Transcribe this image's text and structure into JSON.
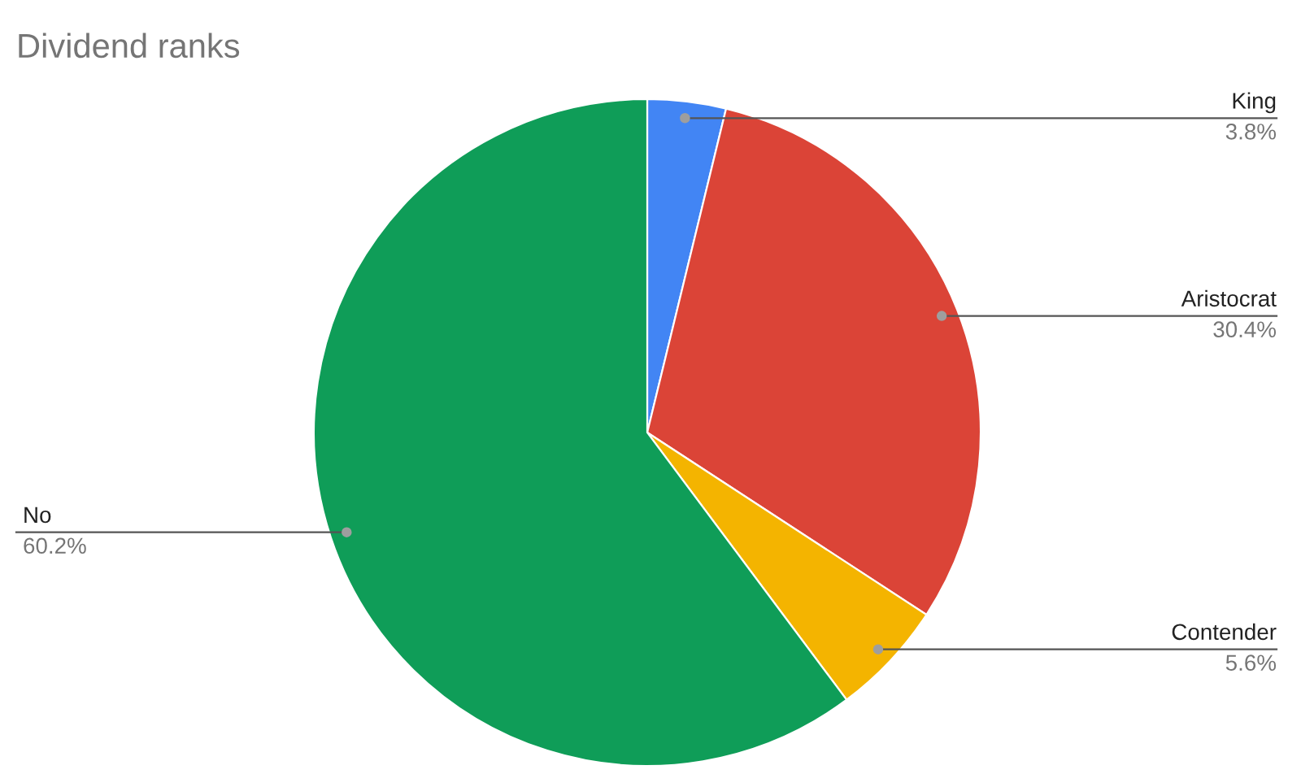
{
  "chart_data": {
    "type": "pie",
    "title": "Dividend ranks",
    "categories": [
      "King",
      "Aristocrat",
      "Contender",
      "No"
    ],
    "values": [
      3.8,
      30.4,
      5.6,
      60.2
    ],
    "colors": [
      "#4285f4",
      "#db4437",
      "#f4b400",
      "#0f9d58"
    ],
    "value_labels": [
      "3.8%",
      "30.4%",
      "5.6%",
      "60.2%"
    ]
  }
}
